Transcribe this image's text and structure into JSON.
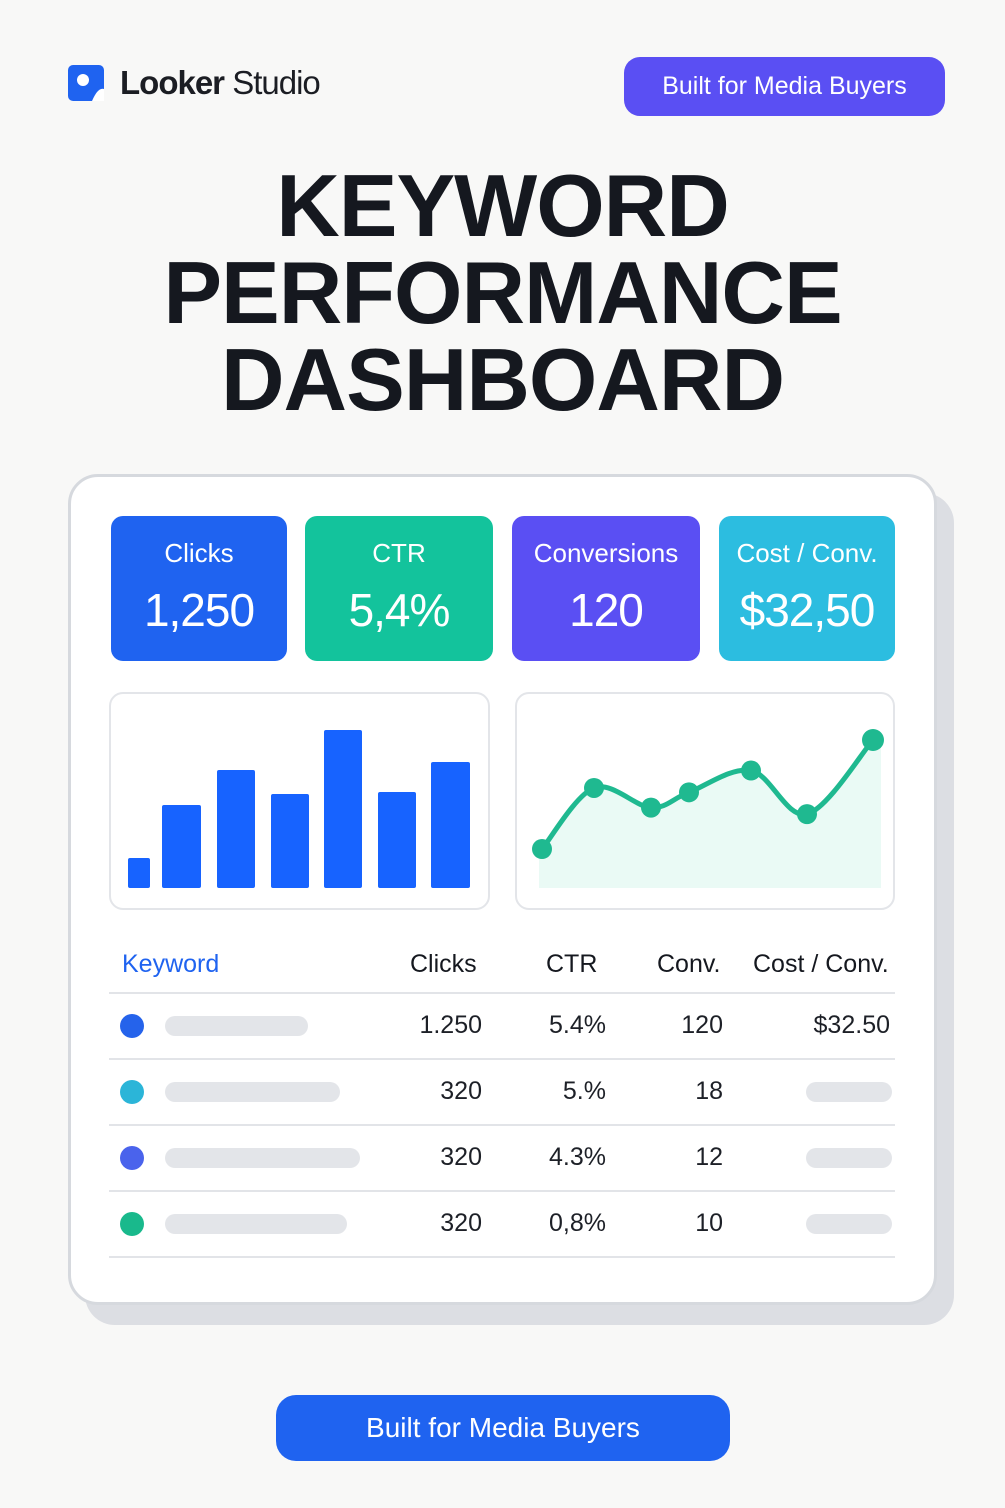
{
  "brand": {
    "name_bold": "Looker",
    "name_light": " Studio"
  },
  "badge_top": "Built for Media Buyers",
  "title_lines": [
    "KEYWORD",
    "PERFORMANCE",
    "DASHBOARD"
  ],
  "kpis": [
    {
      "label": "Clicks",
      "value": "1,250",
      "color": "#1f63f0"
    },
    {
      "label": "CTR",
      "value": "5,4%",
      "color": "#13c39c"
    },
    {
      "label": "Conversions",
      "value": "120",
      "color": "#5a4ff3"
    },
    {
      "label": "Cost / Conv.",
      "value": "$32,50",
      "color": "#2cbde0"
    }
  ],
  "chart_data": [
    {
      "type": "bar",
      "values": [
        30,
        83,
        118,
        94,
        158,
        96,
        126
      ],
      "color": "#1763ff"
    },
    {
      "type": "area",
      "values": [
        40,
        68,
        59,
        66,
        76,
        56,
        90
      ],
      "color": "#1fb990",
      "fill": "#eafaf5"
    }
  ],
  "table": {
    "headers": {
      "keyword": "Keyword",
      "clicks": "Clicks",
      "ctr": "CTR",
      "conv": "Conv.",
      "cost": "Cost / Conv."
    },
    "rows": [
      {
        "dot_color": "#2563eb",
        "clicks": "1.250",
        "ctr": "5.4%",
        "conv": "120",
        "cost": "$32.50"
      },
      {
        "dot_color": "#2bb5d8",
        "clicks": "320",
        "ctr": "5.%",
        "conv": "18",
        "cost": ""
      },
      {
        "dot_color": "#4a63ec",
        "clicks": "320",
        "ctr": "4.3%",
        "conv": "12",
        "cost": ""
      },
      {
        "dot_color": "#19b98c",
        "clicks": "320",
        "ctr": "0,8%",
        "conv": "10",
        "cost": ""
      }
    ]
  },
  "badge_bottom": "Built for Media Buyers"
}
